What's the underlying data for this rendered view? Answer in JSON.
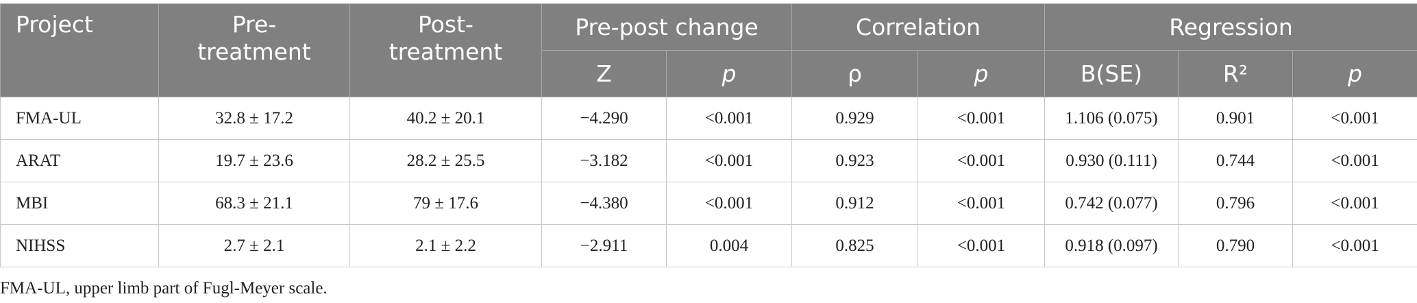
{
  "table": {
    "header_row1": [
      "Project",
      "Pre-treatment",
      "Post-treatment",
      "Pre-post change",
      "Correlation",
      "Regression"
    ],
    "header_row2": [
      "Z",
      "p",
      "ρ",
      "p",
      "B(SE)",
      "R²",
      "p"
    ],
    "rows": [
      [
        "FMA-UL",
        "32.8 ± 17.2",
        "40.2 ± 20.1",
        "−4.290",
        "<0.001",
        "0.929",
        "<0.001",
        "1.106 (0.075)",
        "0.901",
        "<0.001"
      ],
      [
        "ARAT",
        "19.7 ± 23.6",
        "28.2 ± 25.5",
        "−3.182",
        "<0.001",
        "0.923",
        "<0.001",
        "0.930 (0.111)",
        "0.744",
        "<0.001"
      ],
      [
        "MBI",
        "68.3 ± 21.1",
        "79 ± 17.6",
        "−4.380",
        "<0.001",
        "0.912",
        "<0.001",
        "0.742 (0.077)",
        "0.796",
        "<0.001"
      ],
      [
        "NIHSS",
        "2.7 ± 2.1",
        "2.1 ± 2.2",
        "−2.911",
        "0.004",
        "0.825",
        "<0.001",
        "0.918 (0.097)",
        "0.790",
        "<0.001"
      ]
    ]
  },
  "footnote": "FMA-UL, upper limb part of Fugl-Meyer scale."
}
